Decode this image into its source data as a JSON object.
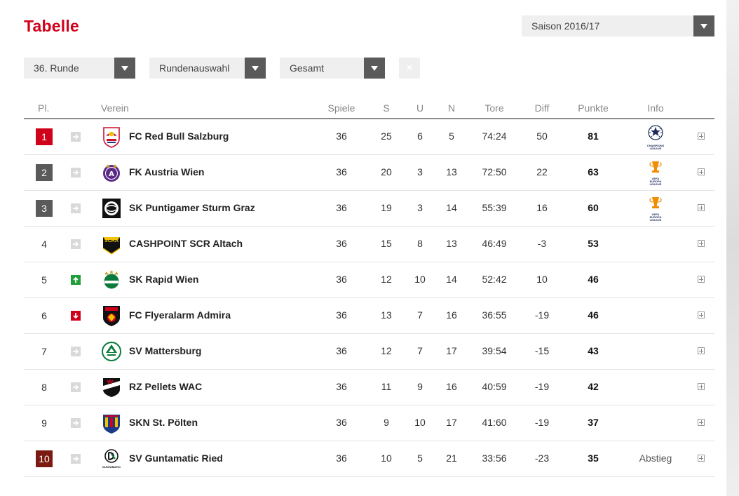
{
  "page": {
    "title": "Tabelle"
  },
  "filters": {
    "season": {
      "label": "Saison 2016/17"
    },
    "round": {
      "label": "36. Runde"
    },
    "round_select": {
      "label": "Rundenauswahl"
    },
    "scope": {
      "label": "Gesamt"
    },
    "clear": {
      "label": "×"
    }
  },
  "table": {
    "headers": {
      "pos": "Pl.",
      "club": "Verein",
      "games": "Spiele",
      "wins": "S",
      "draws": "U",
      "losses": "N",
      "goals": "Tore",
      "diff": "Diff",
      "points": "Punkte",
      "info": "Info"
    },
    "colors": {
      "champion": "#d0021b",
      "top": "#5a5a5a",
      "relegation": "#7a1a10",
      "up": "#1f9e3a",
      "down": "#d0021b",
      "same": "#ffffff"
    },
    "rows": [
      {
        "pos": "1",
        "rank_style": "champion",
        "trend": "same",
        "crest": "red-bull-salzburg-crest-icon",
        "club": "FC Red Bull Salzburg",
        "games": "36",
        "wins": "25",
        "draws": "6",
        "losses": "5",
        "goals": "74:24",
        "diff": "50",
        "points": "81",
        "info_icon": "champions-league-icon",
        "info_caption": [
          "CHAMPIONS",
          "LEAGUE"
        ],
        "info_text": ""
      },
      {
        "pos": "2",
        "rank_style": "top",
        "trend": "same",
        "crest": "austria-wien-crest-icon",
        "club": "FK Austria Wien",
        "games": "36",
        "wins": "20",
        "draws": "3",
        "losses": "13",
        "goals": "72:50",
        "diff": "22",
        "points": "63",
        "info_icon": "europa-league-icon",
        "info_caption": [
          "UEFA",
          "EUROPA",
          "LEAGUE"
        ],
        "info_text": ""
      },
      {
        "pos": "3",
        "rank_style": "top",
        "trend": "same",
        "crest": "sturm-graz-crest-icon",
        "club": "SK Puntigamer Sturm Graz",
        "games": "36",
        "wins": "19",
        "draws": "3",
        "losses": "14",
        "goals": "55:39",
        "diff": "16",
        "points": "60",
        "info_icon": "europa-league-icon",
        "info_caption": [
          "UEFA",
          "EUROPA",
          "LEAGUE"
        ],
        "info_text": ""
      },
      {
        "pos": "4",
        "rank_style": "plain",
        "trend": "same",
        "crest": "scr-altach-crest-icon",
        "club": "CASHPOINT SCR Altach",
        "games": "36",
        "wins": "15",
        "draws": "8",
        "losses": "13",
        "goals": "46:49",
        "diff": "-3",
        "points": "53",
        "info_icon": "",
        "info_text": "",
        "crest_text": "SCRA"
      },
      {
        "pos": "5",
        "rank_style": "plain",
        "trend": "up",
        "crest": "rapid-wien-crest-icon",
        "club": "SK Rapid Wien",
        "games": "36",
        "wins": "12",
        "draws": "10",
        "losses": "14",
        "goals": "52:42",
        "diff": "10",
        "points": "46",
        "info_icon": "",
        "info_text": ""
      },
      {
        "pos": "6",
        "rank_style": "plain",
        "trend": "down",
        "crest": "admira-crest-icon",
        "club": "FC Flyeralarm Admira",
        "games": "36",
        "wins": "13",
        "draws": "7",
        "losses": "16",
        "goals": "36:55",
        "diff": "-19",
        "points": "46",
        "info_icon": "",
        "info_text": ""
      },
      {
        "pos": "7",
        "rank_style": "plain",
        "trend": "same",
        "crest": "mattersburg-crest-icon",
        "club": "SV Mattersburg",
        "games": "36",
        "wins": "12",
        "draws": "7",
        "losses": "17",
        "goals": "39:54",
        "diff": "-15",
        "points": "43",
        "info_icon": "",
        "info_text": ""
      },
      {
        "pos": "8",
        "rank_style": "plain",
        "trend": "same",
        "crest": "wac-crest-icon",
        "club": "RZ Pellets WAC",
        "games": "36",
        "wins": "11",
        "draws": "9",
        "losses": "16",
        "goals": "40:59",
        "diff": "-19",
        "points": "42",
        "info_icon": "",
        "info_text": ""
      },
      {
        "pos": "9",
        "rank_style": "plain",
        "trend": "same",
        "crest": "st-poelten-crest-icon",
        "club": "SKN St. Pölten",
        "games": "36",
        "wins": "9",
        "draws": "10",
        "losses": "17",
        "goals": "41:60",
        "diff": "-19",
        "points": "37",
        "info_icon": "",
        "info_text": ""
      },
      {
        "pos": "10",
        "rank_style": "relegation",
        "trend": "same",
        "crest": "sv-ried-crest-icon",
        "club": "SV Guntamatic Ried",
        "games": "36",
        "wins": "10",
        "draws": "5",
        "losses": "21",
        "goals": "33:56",
        "diff": "-23",
        "points": "35",
        "info_icon": "",
        "info_text": "Abstieg",
        "crest_text": "GUNTAMATIC"
      }
    ]
  }
}
